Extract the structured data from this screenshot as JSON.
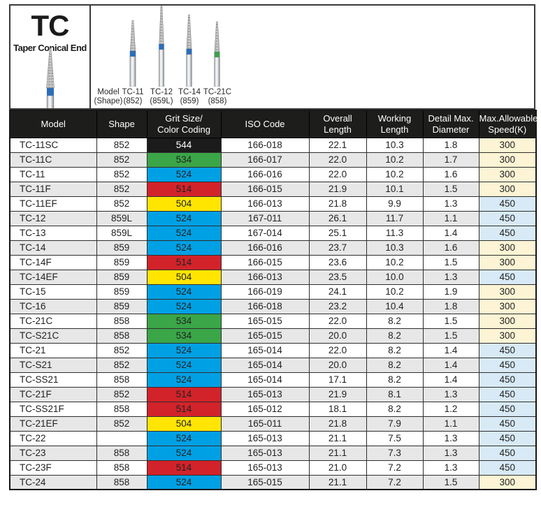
{
  "header": {
    "code": "TC",
    "name": "Taper Conical End",
    "diagram_labels": [
      {
        "model": "Model",
        "shape": "(Shape)"
      },
      {
        "model": "TC-11",
        "shape": "(852)"
      },
      {
        "model": "TC-12",
        "shape": "(859L)"
      },
      {
        "model": "TC-14",
        "shape": "(859)"
      },
      {
        "model": "TC-21C",
        "shape": "(858)"
      }
    ]
  },
  "table": {
    "columns": [
      {
        "l1": "Model",
        "l2": ""
      },
      {
        "l1": "Shape",
        "l2": ""
      },
      {
        "l1": "Grit Size/",
        "l2": "Color Coding"
      },
      {
        "l1": "ISO Code",
        "l2": ""
      },
      {
        "l1": "Overall",
        "l2": "Length"
      },
      {
        "l1": "Working",
        "l2": "Length"
      },
      {
        "l1": "Detail Max.",
        "l2": "Diameter"
      },
      {
        "l1": "Max.Allowable",
        "l2": "Speed(K)"
      }
    ],
    "rows": [
      {
        "model": "TC-11SC",
        "shape": "852",
        "grit": "544",
        "grit_color": "black",
        "iso": "166-018",
        "overall": "22.1",
        "working": "10.3",
        "diameter": "1.8",
        "speed": "300"
      },
      {
        "model": "TC-11C",
        "shape": "852",
        "grit": "534",
        "grit_color": "green",
        "iso": "166-017",
        "overall": "22.0",
        "working": "10.2",
        "diameter": "1.7",
        "speed": "300"
      },
      {
        "model": "TC-11",
        "shape": "852",
        "grit": "524",
        "grit_color": "blue",
        "iso": "166-016",
        "overall": "22.0",
        "working": "10.2",
        "diameter": "1.6",
        "speed": "300"
      },
      {
        "model": "TC-11F",
        "shape": "852",
        "grit": "514",
        "grit_color": "red",
        "iso": "166-015",
        "overall": "21.9",
        "working": "10.1",
        "diameter": "1.5",
        "speed": "300"
      },
      {
        "model": "TC-11EF",
        "shape": "852",
        "grit": "504",
        "grit_color": "yellow",
        "iso": "166-013",
        "overall": "21.8",
        "working": "9.9",
        "diameter": "1.3",
        "speed": "450"
      },
      {
        "model": "TC-12",
        "shape": "859L",
        "grit": "524",
        "grit_color": "blue",
        "iso": "167-011",
        "overall": "26.1",
        "working": "11.7",
        "diameter": "1.1",
        "speed": "450"
      },
      {
        "model": "TC-13",
        "shape": "859L",
        "grit": "524",
        "grit_color": "blue",
        "iso": "167-014",
        "overall": "25.1",
        "working": "11.3",
        "diameter": "1.4",
        "speed": "450"
      },
      {
        "model": "TC-14",
        "shape": "859",
        "grit": "524",
        "grit_color": "blue",
        "iso": "166-016",
        "overall": "23.7",
        "working": "10.3",
        "diameter": "1.6",
        "speed": "300"
      },
      {
        "model": "TC-14F",
        "shape": "859",
        "grit": "514",
        "grit_color": "red",
        "iso": "166-015",
        "overall": "23.6",
        "working": "10.2",
        "diameter": "1.5",
        "speed": "300"
      },
      {
        "model": "TC-14EF",
        "shape": "859",
        "grit": "504",
        "grit_color": "yellow",
        "iso": "166-013",
        "overall": "23.5",
        "working": "10.0",
        "diameter": "1.3",
        "speed": "450"
      },
      {
        "model": "TC-15",
        "shape": "859",
        "grit": "524",
        "grit_color": "blue",
        "iso": "166-019",
        "overall": "24.1",
        "working": "10.2",
        "diameter": "1.9",
        "speed": "300"
      },
      {
        "model": "TC-16",
        "shape": "859",
        "grit": "524",
        "grit_color": "blue",
        "iso": "166-018",
        "overall": "23.2",
        "working": "10.4",
        "diameter": "1.8",
        "speed": "300"
      },
      {
        "model": "TC-21C",
        "shape": "858",
        "grit": "534",
        "grit_color": "green",
        "iso": "165-015",
        "overall": "22.0",
        "working": "8.2",
        "diameter": "1.5",
        "speed": "300"
      },
      {
        "model": "TC-S21C",
        "shape": "858",
        "grit": "534",
        "grit_color": "green",
        "iso": "165-015",
        "overall": "20.0",
        "working": "8.2",
        "diameter": "1.5",
        "speed": "300"
      },
      {
        "model": "TC-21",
        "shape": "852",
        "grit": "524",
        "grit_color": "blue",
        "iso": "165-014",
        "overall": "22.0",
        "working": "8.2",
        "diameter": "1.4",
        "speed": "450"
      },
      {
        "model": "TC-S21",
        "shape": "852",
        "grit": "524",
        "grit_color": "blue",
        "iso": "165-014",
        "overall": "20.0",
        "working": "8.2",
        "diameter": "1.4",
        "speed": "450"
      },
      {
        "model": "TC-SS21",
        "shape": "858",
        "grit": "524",
        "grit_color": "blue",
        "iso": "165-014",
        "overall": "17.1",
        "working": "8.2",
        "diameter": "1.4",
        "speed": "450"
      },
      {
        "model": "TC-21F",
        "shape": "852",
        "grit": "514",
        "grit_color": "red",
        "iso": "165-013",
        "overall": "21.9",
        "working": "8.1",
        "diameter": "1.3",
        "speed": "450"
      },
      {
        "model": "TC-SS21F",
        "shape": "858",
        "grit": "514",
        "grit_color": "red",
        "iso": "165-012",
        "overall": "18.1",
        "working": "8.2",
        "diameter": "1.2",
        "speed": "450"
      },
      {
        "model": "TC-21EF",
        "shape": "852",
        "grit": "504",
        "grit_color": "yellow",
        "iso": "165-011",
        "overall": "21.8",
        "working": "7.9",
        "diameter": "1.1",
        "speed": "450"
      },
      {
        "model": "TC-22",
        "shape": "",
        "grit": "524",
        "grit_color": "blue",
        "iso": "165-013",
        "overall": "21.1",
        "working": "7.5",
        "diameter": "1.3",
        "speed": "450"
      },
      {
        "model": "TC-23",
        "shape": "858",
        "grit": "524",
        "grit_color": "blue",
        "iso": "165-013",
        "overall": "21.1",
        "working": "7.3",
        "diameter": "1.3",
        "speed": "450"
      },
      {
        "model": "TC-23F",
        "shape": "858",
        "grit": "514",
        "grit_color": "red",
        "iso": "165-013",
        "overall": "21.0",
        "working": "7.2",
        "diameter": "1.3",
        "speed": "450"
      },
      {
        "model": "TC-24",
        "shape": "858",
        "grit": "524",
        "grit_color": "blue",
        "iso": "165-015",
        "overall": "21.1",
        "working": "7.2",
        "diameter": "1.5",
        "speed": "300"
      }
    ]
  },
  "colors": {
    "grit": {
      "black": "#1b1b1b",
      "green": "#3aa648",
      "blue": "#00a0e4",
      "red": "#d2232a",
      "yellow": "#ffe500"
    },
    "speed": {
      "300": "#fcf4d4",
      "450": "#d8eaf6"
    },
    "bur_band_blue": "#2e6db6",
    "bur_band_green": "#3f9e4e"
  }
}
